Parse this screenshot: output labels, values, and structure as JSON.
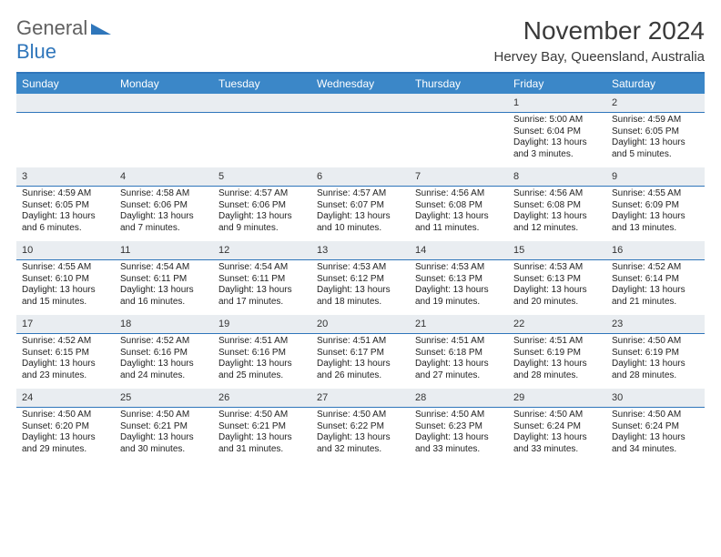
{
  "logo": {
    "part1": "General",
    "part2": "Blue"
  },
  "title": "November 2024",
  "location": "Hervey Bay, Queensland, Australia",
  "colors": {
    "accent": "#2f76bb",
    "header_bg": "#3b87c8",
    "daynum_bg": "#e9edf1",
    "text": "#222222",
    "title": "#3a3a3a"
  },
  "day_headers": [
    "Sunday",
    "Monday",
    "Tuesday",
    "Wednesday",
    "Thursday",
    "Friday",
    "Saturday"
  ],
  "weeks": [
    [
      {
        "n": "",
        "sr": "",
        "ss": "",
        "dl": ""
      },
      {
        "n": "",
        "sr": "",
        "ss": "",
        "dl": ""
      },
      {
        "n": "",
        "sr": "",
        "ss": "",
        "dl": ""
      },
      {
        "n": "",
        "sr": "",
        "ss": "",
        "dl": ""
      },
      {
        "n": "",
        "sr": "",
        "ss": "",
        "dl": ""
      },
      {
        "n": "1",
        "sr": "Sunrise: 5:00 AM",
        "ss": "Sunset: 6:04 PM",
        "dl": "Daylight: 13 hours and 3 minutes."
      },
      {
        "n": "2",
        "sr": "Sunrise: 4:59 AM",
        "ss": "Sunset: 6:05 PM",
        "dl": "Daylight: 13 hours and 5 minutes."
      }
    ],
    [
      {
        "n": "3",
        "sr": "Sunrise: 4:59 AM",
        "ss": "Sunset: 6:05 PM",
        "dl": "Daylight: 13 hours and 6 minutes."
      },
      {
        "n": "4",
        "sr": "Sunrise: 4:58 AM",
        "ss": "Sunset: 6:06 PM",
        "dl": "Daylight: 13 hours and 7 minutes."
      },
      {
        "n": "5",
        "sr": "Sunrise: 4:57 AM",
        "ss": "Sunset: 6:06 PM",
        "dl": "Daylight: 13 hours and 9 minutes."
      },
      {
        "n": "6",
        "sr": "Sunrise: 4:57 AM",
        "ss": "Sunset: 6:07 PM",
        "dl": "Daylight: 13 hours and 10 minutes."
      },
      {
        "n": "7",
        "sr": "Sunrise: 4:56 AM",
        "ss": "Sunset: 6:08 PM",
        "dl": "Daylight: 13 hours and 11 minutes."
      },
      {
        "n": "8",
        "sr": "Sunrise: 4:56 AM",
        "ss": "Sunset: 6:08 PM",
        "dl": "Daylight: 13 hours and 12 minutes."
      },
      {
        "n": "9",
        "sr": "Sunrise: 4:55 AM",
        "ss": "Sunset: 6:09 PM",
        "dl": "Daylight: 13 hours and 13 minutes."
      }
    ],
    [
      {
        "n": "10",
        "sr": "Sunrise: 4:55 AM",
        "ss": "Sunset: 6:10 PM",
        "dl": "Daylight: 13 hours and 15 minutes."
      },
      {
        "n": "11",
        "sr": "Sunrise: 4:54 AM",
        "ss": "Sunset: 6:11 PM",
        "dl": "Daylight: 13 hours and 16 minutes."
      },
      {
        "n": "12",
        "sr": "Sunrise: 4:54 AM",
        "ss": "Sunset: 6:11 PM",
        "dl": "Daylight: 13 hours and 17 minutes."
      },
      {
        "n": "13",
        "sr": "Sunrise: 4:53 AM",
        "ss": "Sunset: 6:12 PM",
        "dl": "Daylight: 13 hours and 18 minutes."
      },
      {
        "n": "14",
        "sr": "Sunrise: 4:53 AM",
        "ss": "Sunset: 6:13 PM",
        "dl": "Daylight: 13 hours and 19 minutes."
      },
      {
        "n": "15",
        "sr": "Sunrise: 4:53 AM",
        "ss": "Sunset: 6:13 PM",
        "dl": "Daylight: 13 hours and 20 minutes."
      },
      {
        "n": "16",
        "sr": "Sunrise: 4:52 AM",
        "ss": "Sunset: 6:14 PM",
        "dl": "Daylight: 13 hours and 21 minutes."
      }
    ],
    [
      {
        "n": "17",
        "sr": "Sunrise: 4:52 AM",
        "ss": "Sunset: 6:15 PM",
        "dl": "Daylight: 13 hours and 23 minutes."
      },
      {
        "n": "18",
        "sr": "Sunrise: 4:52 AM",
        "ss": "Sunset: 6:16 PM",
        "dl": "Daylight: 13 hours and 24 minutes."
      },
      {
        "n": "19",
        "sr": "Sunrise: 4:51 AM",
        "ss": "Sunset: 6:16 PM",
        "dl": "Daylight: 13 hours and 25 minutes."
      },
      {
        "n": "20",
        "sr": "Sunrise: 4:51 AM",
        "ss": "Sunset: 6:17 PM",
        "dl": "Daylight: 13 hours and 26 minutes."
      },
      {
        "n": "21",
        "sr": "Sunrise: 4:51 AM",
        "ss": "Sunset: 6:18 PM",
        "dl": "Daylight: 13 hours and 27 minutes."
      },
      {
        "n": "22",
        "sr": "Sunrise: 4:51 AM",
        "ss": "Sunset: 6:19 PM",
        "dl": "Daylight: 13 hours and 28 minutes."
      },
      {
        "n": "23",
        "sr": "Sunrise: 4:50 AM",
        "ss": "Sunset: 6:19 PM",
        "dl": "Daylight: 13 hours and 28 minutes."
      }
    ],
    [
      {
        "n": "24",
        "sr": "Sunrise: 4:50 AM",
        "ss": "Sunset: 6:20 PM",
        "dl": "Daylight: 13 hours and 29 minutes."
      },
      {
        "n": "25",
        "sr": "Sunrise: 4:50 AM",
        "ss": "Sunset: 6:21 PM",
        "dl": "Daylight: 13 hours and 30 minutes."
      },
      {
        "n": "26",
        "sr": "Sunrise: 4:50 AM",
        "ss": "Sunset: 6:21 PM",
        "dl": "Daylight: 13 hours and 31 minutes."
      },
      {
        "n": "27",
        "sr": "Sunrise: 4:50 AM",
        "ss": "Sunset: 6:22 PM",
        "dl": "Daylight: 13 hours and 32 minutes."
      },
      {
        "n": "28",
        "sr": "Sunrise: 4:50 AM",
        "ss": "Sunset: 6:23 PM",
        "dl": "Daylight: 13 hours and 33 minutes."
      },
      {
        "n": "29",
        "sr": "Sunrise: 4:50 AM",
        "ss": "Sunset: 6:24 PM",
        "dl": "Daylight: 13 hours and 33 minutes."
      },
      {
        "n": "30",
        "sr": "Sunrise: 4:50 AM",
        "ss": "Sunset: 6:24 PM",
        "dl": "Daylight: 13 hours and 34 minutes."
      }
    ]
  ]
}
